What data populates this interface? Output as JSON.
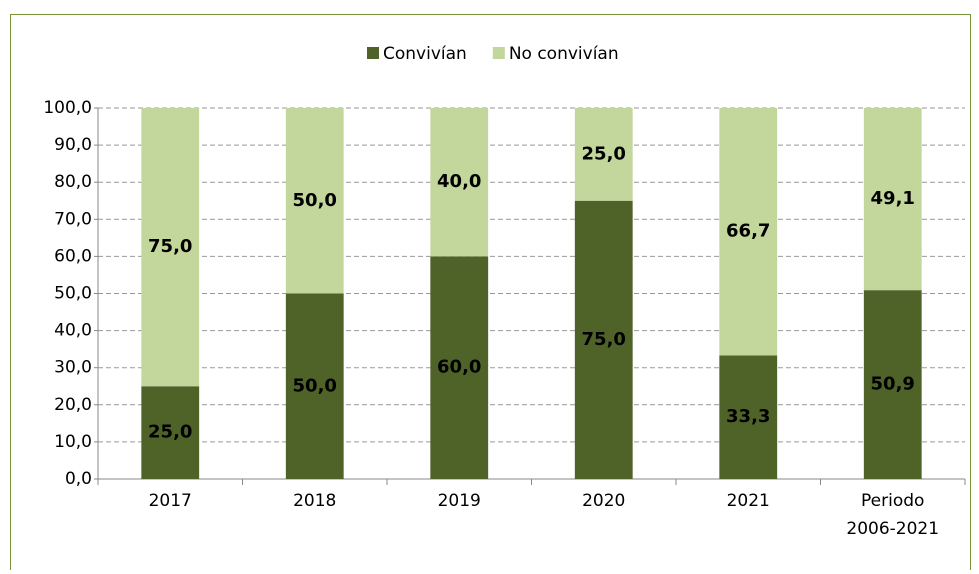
{
  "chart_data": {
    "type": "stacked_bar",
    "categories": [
      "2017",
      "2018",
      "2019",
      "2020",
      "2021",
      "Periodo 2006-2021"
    ],
    "series": [
      {
        "name": "Convivían",
        "color": "#4f6228",
        "values": [
          25,
          50,
          60,
          75,
          33.3,
          50.9
        ],
        "value_labels": [
          "25,0",
          "50,0",
          "60,0",
          "75,0",
          "33,3",
          "50,9"
        ]
      },
      {
        "name": "No convivían",
        "color": "#c3d69b",
        "values": [
          75,
          50,
          40,
          25,
          66.7,
          49.1
        ],
        "value_labels": [
          "75,0",
          "50,0",
          "40,0",
          "25,0",
          "66,7",
          "49,1"
        ]
      }
    ],
    "ylim": [
      0,
      100
    ],
    "yticks": [
      {
        "value": 0,
        "label": "0,0"
      },
      {
        "value": 10,
        "label": "10,0"
      },
      {
        "value": 20,
        "label": "20,0"
      },
      {
        "value": 30,
        "label": "30,0"
      },
      {
        "value": 40,
        "label": "40,0"
      },
      {
        "value": 50,
        "label": "50,0"
      },
      {
        "value": 60,
        "label": "60,0"
      },
      {
        "value": 70,
        "label": "70,0"
      },
      {
        "value": 80,
        "label": "80,0"
      },
      {
        "value": 90,
        "label": "90,0"
      },
      {
        "value": 100,
        "label": "100,0"
      }
    ],
    "grid": true,
    "legend": "top"
  }
}
